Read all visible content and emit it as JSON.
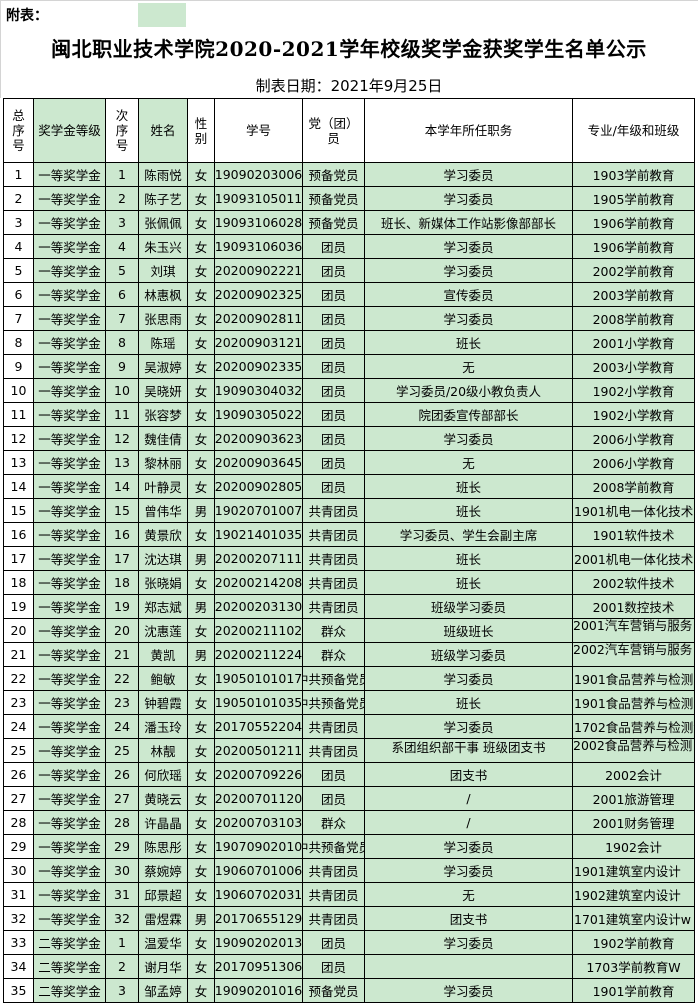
{
  "header": {
    "fubiao": "附表：",
    "title": "闽北职业技术学院2020-2021学年校级奖学金获奖学生名单公示",
    "date": "制表日期：2021年9月25日"
  },
  "columns": [
    "总序号",
    "奖学金等级",
    "次序号",
    "姓名",
    "性别",
    "学号",
    "党（团）员",
    "本学年所任职务",
    "专业/年级和班级"
  ],
  "colors": {
    "cell_green": "#cce8cf"
  },
  "rows": [
    [
      "1",
      "一等奖学金",
      "1",
      "陈雨悦",
      "女",
      "19090203006",
      "预备党员",
      "学习委员",
      "1903学前教育"
    ],
    [
      "2",
      "一等奖学金",
      "2",
      "陈子艺",
      "女",
      "19093105011",
      "预备党员",
      "学习委员",
      "1905学前教育"
    ],
    [
      "3",
      "一等奖学金",
      "3",
      "张佩佩",
      "女",
      "19093106028",
      "预备党员",
      "班长、新媒体工作站影像部部长",
      "1906学前教育"
    ],
    [
      "4",
      "一等奖学金",
      "4",
      "朱玉兴",
      "女",
      "19093106036",
      "团员",
      "学习委员",
      "1906学前教育"
    ],
    [
      "5",
      "一等奖学金",
      "5",
      "刘琪",
      "女",
      "20200902221",
      "团员",
      "学习委员",
      "2002学前教育"
    ],
    [
      "6",
      "一等奖学金",
      "6",
      "林惠枫",
      "女",
      "20200902325",
      "团员",
      "宣传委员",
      "2003学前教育"
    ],
    [
      "7",
      "一等奖学金",
      "7",
      "张思雨",
      "女",
      "20200902811",
      "团员",
      "学习委员",
      "2008学前教育"
    ],
    [
      "8",
      "一等奖学金",
      "8",
      "陈瑶",
      "女",
      "20200903121",
      "团员",
      "班长",
      "2001小学教育"
    ],
    [
      "9",
      "一等奖学金",
      "9",
      "吴淑婷",
      "女",
      "20200902335",
      "团员",
      "无",
      "2003小学教育"
    ],
    [
      "10",
      "一等奖学金",
      "10",
      "吴晓妍",
      "女",
      "19090304032",
      "团员",
      "学习委员/20级小教负责人",
      "1902小学教育"
    ],
    [
      "11",
      "一等奖学金",
      "11",
      "张容梦",
      "女",
      "19090305022",
      "团员",
      "院团委宣传部部长",
      "1902小学教育"
    ],
    [
      "12",
      "一等奖学金",
      "12",
      "魏佳倩",
      "女",
      "20200903623",
      "团员",
      "学习委员",
      "2006小学教育"
    ],
    [
      "13",
      "一等奖学金",
      "13",
      "黎林丽",
      "女",
      "20200903645",
      "团员",
      "无",
      "2006小学教育"
    ],
    [
      "14",
      "一等奖学金",
      "14",
      "叶静灵",
      "女",
      "20200902805",
      "团员",
      "班长",
      "2008学前教育"
    ],
    [
      "15",
      "一等奖学金",
      "15",
      "曾伟华",
      "男",
      "19020701007",
      "共青团员",
      "班长",
      "1901机电一体化技术"
    ],
    [
      "16",
      "一等奖学金",
      "16",
      "黄景欣",
      "女",
      "19021401035",
      "共青团员",
      "学习委员、学生会副主席",
      "1901软件技术"
    ],
    [
      "17",
      "一等奖学金",
      "17",
      "沈达琪",
      "男",
      "20200207111",
      "共青团员",
      "班长",
      "2001机电一体化技术"
    ],
    [
      "18",
      "一等奖学金",
      "18",
      "张晓娟",
      "女",
      "20200214208",
      "共青团员",
      "班长",
      "2002软件技术"
    ],
    [
      "19",
      "一等奖学金",
      "19",
      "郑志斌",
      "男",
      "20200203130",
      "共青团员",
      "班级学习委员",
      "2001数控技术"
    ],
    [
      "20",
      "一等奖学金",
      "20",
      "沈惠莲",
      "女",
      "20200211102",
      "群众",
      "班级班长",
      "2001汽车营销与服务"
    ],
    [
      "21",
      "一等奖学金",
      "21",
      "黄凯",
      "男",
      "20200211224",
      "群众",
      "班级学习委员",
      "2002汽车营销与服务"
    ],
    [
      "22",
      "一等奖学金",
      "22",
      "鲍敏",
      "女",
      "19050101017",
      "中共预备党员",
      "学习委员",
      "1901食品营养与检测"
    ],
    [
      "23",
      "一等奖学金",
      "23",
      "钟碧霞",
      "女",
      "19050101035",
      "中共预备党员",
      "班长",
      "1901食品营养与检测"
    ],
    [
      "24",
      "一等奖学金",
      "24",
      "潘玉玲",
      "女",
      "20170552204",
      "共青团员",
      "学习委员",
      "1702食品营养与检测w"
    ],
    [
      "25",
      "一等奖学金",
      "25",
      "林靓",
      "女",
      "20200501211",
      "共青团员",
      "系团组织部干事 班级团支书",
      "2002食品营养与检测"
    ],
    [
      "26",
      "一等奖学金",
      "26",
      "何欣瑶",
      "女",
      "20200709226",
      "团员",
      "团支书",
      "2002会计"
    ],
    [
      "27",
      "一等奖学金",
      "27",
      "黄晓云",
      "女",
      "20200701120",
      "团员",
      "/",
      "2001旅游管理"
    ],
    [
      "28",
      "一等奖学金",
      "28",
      "许晶晶",
      "女",
      "20200703103",
      "群众",
      "/",
      "2001财务管理"
    ],
    [
      "29",
      "一等奖学金",
      "29",
      "陈思彤",
      "女",
      "19070902010",
      "中共预备党员",
      "学习委员",
      "1902会计"
    ],
    [
      "30",
      "一等奖学金",
      "30",
      "蔡婉婷",
      "女",
      "19060701006",
      "共青团员",
      "学习委员",
      "1901建筑室内设计"
    ],
    [
      "31",
      "一等奖学金",
      "31",
      "邱景超",
      "女",
      "19060702031",
      "共青团员",
      "无",
      "1902建筑室内设计"
    ],
    [
      "32",
      "一等奖学金",
      "32",
      "雷煜霖",
      "男",
      "20170655129",
      "共青团员",
      "团支书",
      "1701建筑室内设计w"
    ],
    [
      "33",
      "二等奖学金",
      "1",
      "温爱华",
      "女",
      "19090202013",
      "团员",
      "学习委员",
      "1902学前教育"
    ],
    [
      "34",
      "二等奖学金",
      "2",
      "谢月华",
      "女",
      "20170951306",
      "团员",
      "",
      "1703学前教育W"
    ],
    [
      "35",
      "二等奖学金",
      "3",
      "邹孟婷",
      "女",
      "19090201016",
      "预备党员",
      "学习委员",
      "1901学前教育"
    ]
  ]
}
